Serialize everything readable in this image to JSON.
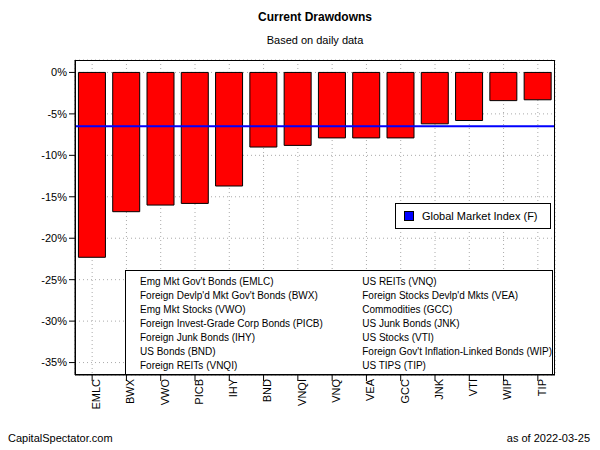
{
  "chart_data": {
    "type": "bar",
    "title": "Current Drawdowns",
    "subtitle": "Based on daily data",
    "categories": [
      "EMLC",
      "BWX",
      "VWO",
      "PICB",
      "IHY",
      "BND",
      "VNQI",
      "VNQ",
      "VEA",
      "GCC",
      "JNK",
      "VTI",
      "WIP",
      "TIP"
    ],
    "values": [
      -22.3,
      -16.8,
      -16.0,
      -15.8,
      -13.7,
      -9.0,
      -8.8,
      -7.9,
      -7.9,
      -7.9,
      -6.2,
      -5.8,
      -3.4,
      -3.3
    ],
    "color": "#ff0000",
    "ylim": [
      -36.5,
      1.5
    ],
    "yticks": [
      {
        "value": 0,
        "label": "0%"
      },
      {
        "value": -5,
        "label": "-5%"
      },
      {
        "value": -10,
        "label": "-10%"
      },
      {
        "value": -15,
        "label": "-15%"
      },
      {
        "value": -20,
        "label": "-20%"
      },
      {
        "value": -25,
        "label": "-25%"
      },
      {
        "value": -30,
        "label": "-30%"
      },
      {
        "value": -35,
        "label": "-35%"
      }
    ],
    "grid": true,
    "legend": "right",
    "benchmark": {
      "name": "Global Market Index (F)",
      "value": -6.5,
      "color": "#0000ff"
    },
    "notes": [
      "Emg Mkt Gov't Bonds (EMLC)",
      "Foreign Devlp'd Mkt Gov't Bonds (BWX)",
      "Emg Mkt Stocks (VWO)",
      "Foreign Invest-Grade Corp Bonds (PICB)",
      "Foreign Junk Bonds (IHY)",
      "US Bonds (BND)",
      "Foreign REITs (VNQI)",
      "US REITs (VNQ)",
      "Foreign Stocks Devlp'd Mkts (VEA)",
      "Commodities (GCC)",
      "US Junk Bonds (JNK)",
      "US Stocks (VTI)",
      "Foreign Gov't Inflation-Linked Bonds (WIP)",
      "US TIPS (TIP)"
    ],
    "source": "CapitalSpectator.com",
    "as_of": "as of 2022-03-25"
  }
}
